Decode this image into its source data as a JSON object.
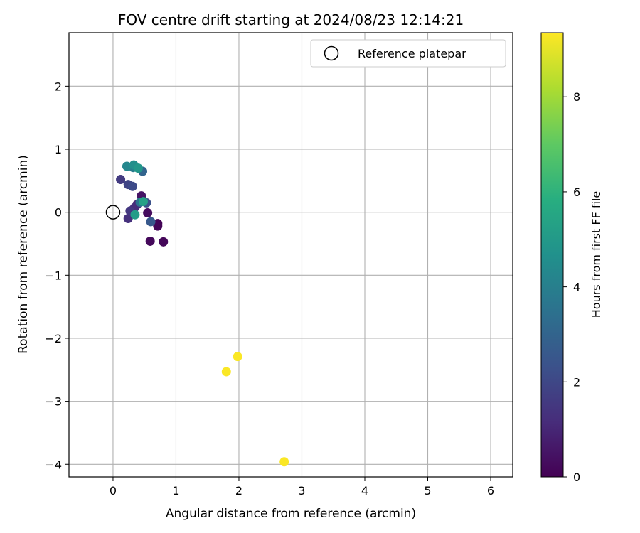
{
  "chart_data": {
    "type": "scatter",
    "title": "FOV centre drift starting at 2024/08/23 12:14:21",
    "xlabel": "Angular distance from reference (arcmin)",
    "ylabel": "Rotation from reference (arcmin)",
    "xlim": [
      -0.7,
      6.35
    ],
    "ylim": [
      -4.2,
      2.85
    ],
    "xticks": [
      "0",
      "1",
      "2",
      "3",
      "4",
      "5",
      "6"
    ],
    "yticks": [
      "−4",
      "−3",
      "−2",
      "−1",
      "0",
      "1",
      "2"
    ],
    "grid": true,
    "legend": {
      "position": "top-right",
      "entries": [
        "Reference platepar"
      ]
    },
    "reference": {
      "x": 0,
      "y": 0
    },
    "colorbar": {
      "label": "Hours from first FF file",
      "range": [
        0,
        9.35
      ],
      "ticks": [
        "0",
        "2",
        "4",
        "6",
        "8"
      ],
      "colormap": "viridis"
    },
    "points": [
      {
        "x": 0.71,
        "y": -0.18,
        "h": 0.05
      },
      {
        "x": 0.71,
        "y": -0.22,
        "h": 0.1
      },
      {
        "x": 0.8,
        "y": -0.47,
        "h": 0.15
      },
      {
        "x": 0.59,
        "y": -0.46,
        "h": 0.2
      },
      {
        "x": 0.55,
        "y": -0.01,
        "h": 0.3
      },
      {
        "x": 0.45,
        "y": 0.26,
        "h": 0.5
      },
      {
        "x": 0.3,
        "y": 0.03,
        "h": 0.8
      },
      {
        "x": 0.38,
        "y": 0.12,
        "h": 1.0
      },
      {
        "x": 0.34,
        "y": 0.07,
        "h": 1.2
      },
      {
        "x": 0.24,
        "y": -0.1,
        "h": 1.3
      },
      {
        "x": 0.27,
        "y": 0.02,
        "h": 1.5
      },
      {
        "x": 0.12,
        "y": 0.52,
        "h": 1.6
      },
      {
        "x": 0.24,
        "y": 0.44,
        "h": 1.9
      },
      {
        "x": 0.31,
        "y": 0.41,
        "h": 2.1
      },
      {
        "x": 0.53,
        "y": 0.15,
        "h": 2.3
      },
      {
        "x": 0.6,
        "y": -0.15,
        "h": 2.6
      },
      {
        "x": 0.47,
        "y": 0.65,
        "h": 3.0
      },
      {
        "x": 0.43,
        "y": 0.16,
        "h": 3.5
      },
      {
        "x": 0.32,
        "y": 0.71,
        "h": 3.9
      },
      {
        "x": 0.22,
        "y": 0.73,
        "h": 4.3
      },
      {
        "x": 0.33,
        "y": 0.75,
        "h": 4.6
      },
      {
        "x": 0.4,
        "y": 0.7,
        "h": 4.9
      },
      {
        "x": 0.35,
        "y": -0.04,
        "h": 5.1
      },
      {
        "x": 0.48,
        "y": 0.17,
        "h": 5.3
      },
      {
        "x": 1.8,
        "y": -2.53,
        "h": 9.3
      },
      {
        "x": 1.98,
        "y": -2.29,
        "h": 9.3
      },
      {
        "x": 2.72,
        "y": -3.96,
        "h": 9.3
      }
    ]
  }
}
